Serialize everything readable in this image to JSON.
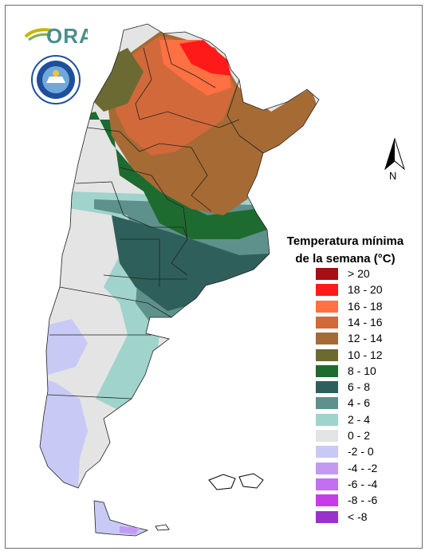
{
  "logo": {
    "ora_text": "ORA",
    "agency_seal": "smn-seal-icon"
  },
  "north_arrow": {
    "label": "N"
  },
  "legend": {
    "title_line1": "Temperatura mínima",
    "title_line2": "de la semana (°C)",
    "items": [
      {
        "label": "> 20",
        "color": "#a50f15"
      },
      {
        "label": "18 - 20",
        "color": "#ff1a1a"
      },
      {
        "label": "16 - 18",
        "color": "#ff7043"
      },
      {
        "label": "14 - 16",
        "color": "#d2693a"
      },
      {
        "label": "12 - 14",
        "color": "#a66a34"
      },
      {
        "label": "10 - 12",
        "color": "#6b6a33"
      },
      {
        "label": "8 - 10",
        "color": "#1e6b2f"
      },
      {
        "label": "6 - 8",
        "color": "#2f5f5a"
      },
      {
        "label": "4 - 6",
        "color": "#5e918c"
      },
      {
        "label": "2 - 4",
        "color": "#9fd3cc"
      },
      {
        "label": "0 - 2",
        "color": "#e4e4e4"
      },
      {
        "label": "-2 - 0",
        "color": "#c9c9f5"
      },
      {
        "label": "-4 - -2",
        "color": "#c39af3"
      },
      {
        "label": "-6 - -4",
        "color": "#c46ef2"
      },
      {
        "label": "-8 - -6",
        "color": "#c43ee8"
      },
      {
        "label": "< -8",
        "color": "#9932cc"
      }
    ]
  }
}
